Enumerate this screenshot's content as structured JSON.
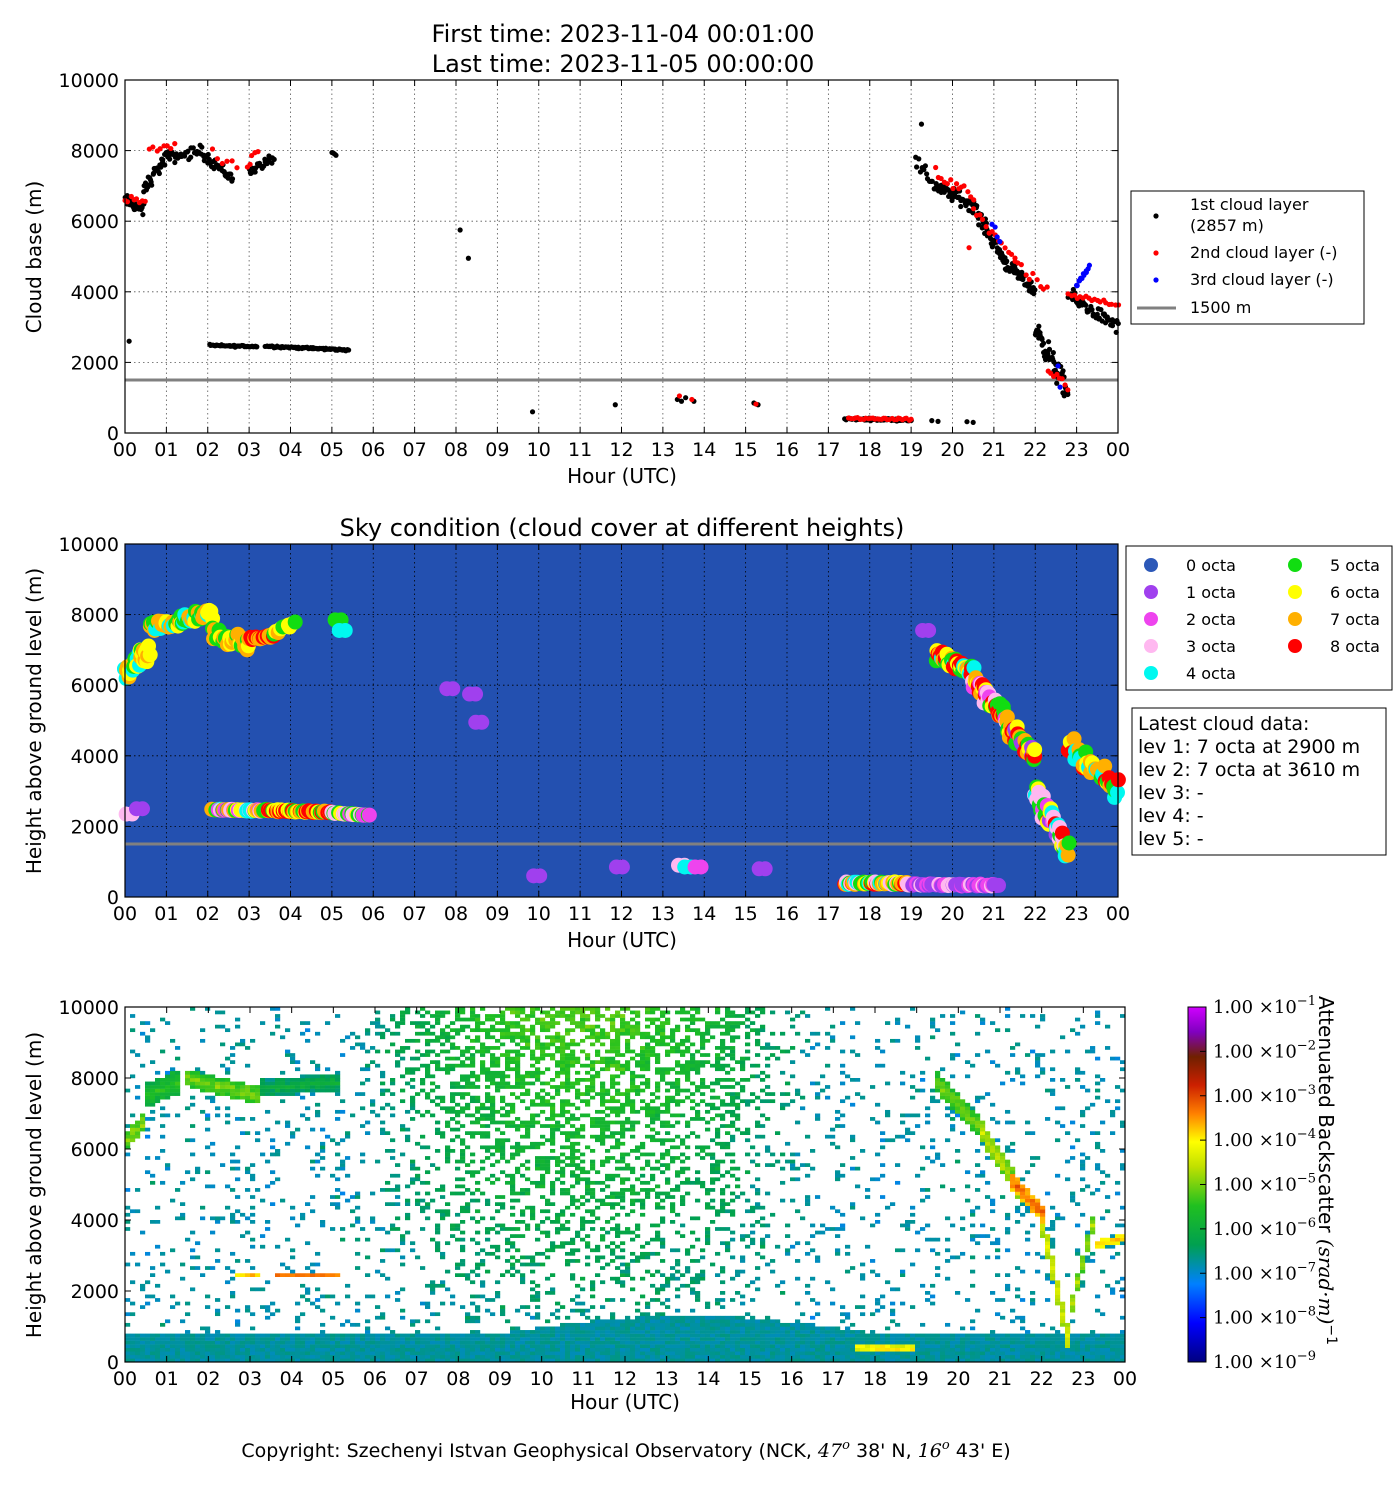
{
  "header": {
    "first_time": "First time: 2023-11-04 00:01:00",
    "last_time": "Last time: 2023-11-05 00:00:00"
  },
  "footer": {
    "copyright_prefix": "Copyright: Szechenyi Istvan Geophysical Observatory (NCK, ",
    "lat_deg": "47",
    "lat_min": " 38' N, ",
    "lon_deg": "16",
    "lon_min": " 43' E)",
    "degree_symbol": "o"
  },
  "colors": {
    "first_layer": "#000000",
    "second_layer": "#ff0000",
    "third_layer": "#0000ff",
    "reference_line": "#808080",
    "sky_background": "#2350b0"
  },
  "chart_data": [
    {
      "type": "scatter",
      "title": "",
      "xlabel": "Hour (UTC)",
      "ylabel": "Cloud base (m)",
      "xlim": [
        0,
        24
      ],
      "ylim": [
        0,
        10000
      ],
      "grid": true,
      "legend_placement": "right",
      "x_tick_labels": [
        "00",
        "01",
        "02",
        "03",
        "04",
        "05",
        "06",
        "07",
        "08",
        "09",
        "10",
        "11",
        "12",
        "13",
        "14",
        "15",
        "16",
        "17",
        "18",
        "19",
        "20",
        "21",
        "22",
        "23",
        "00"
      ],
      "y_ticks": [
        0,
        2000,
        4000,
        6000,
        8000,
        10000
      ],
      "reference_line": {
        "value": 1500,
        "label": "1500 m"
      },
      "series": [
        {
          "name": "1st cloud layer\n(2857 m)",
          "color": "#000000",
          "segments": [
            {
              "x0": 0.0,
              "x1": 0.45,
              "y0": 6600,
              "y1": 6300,
              "n": 30,
              "jitter": 250
            },
            {
              "x0": 0.45,
              "x1": 1.05,
              "y0": 6900,
              "y1": 7900,
              "n": 30,
              "jitter": 300
            },
            {
              "x0": 1.05,
              "x1": 1.9,
              "y0": 7800,
              "y1": 8000,
              "n": 30,
              "jitter": 250
            },
            {
              "x0": 1.9,
              "x1": 2.6,
              "y0": 7900,
              "y1": 7200,
              "n": 30,
              "jitter": 250
            },
            {
              "x0": 3.0,
              "x1": 3.6,
              "y0": 7400,
              "y1": 7800,
              "n": 22,
              "jitter": 200
            },
            {
              "x0": 5.0,
              "x1": 5.1,
              "y0": 7950,
              "y1": 7880,
              "n": 4,
              "jitter": 40
            },
            {
              "x0": 2.05,
              "x1": 3.2,
              "y0": 2480,
              "y1": 2450,
              "n": 40,
              "jitter": 40
            },
            {
              "x0": 3.4,
              "x1": 5.4,
              "y0": 2460,
              "y1": 2350,
              "n": 80,
              "jitter": 40
            },
            {
              "x0": 17.4,
              "x1": 19.0,
              "y0": 400,
              "y1": 370,
              "n": 55,
              "jitter": 45
            },
            {
              "x0": 19.1,
              "x1": 19.6,
              "y0": 7700,
              "y1": 7000,
              "n": 14,
              "jitter": 300
            },
            {
              "x0": 19.6,
              "x1": 20.6,
              "y0": 7000,
              "y1": 6400,
              "n": 55,
              "jitter": 300
            },
            {
              "x0": 20.6,
              "x1": 21.3,
              "y0": 6200,
              "y1": 4800,
              "n": 50,
              "jitter": 300
            },
            {
              "x0": 21.3,
              "x1": 22.0,
              "y0": 4800,
              "y1": 4000,
              "n": 45,
              "jitter": 250
            },
            {
              "x0": 22.0,
              "x1": 22.8,
              "y0": 3000,
              "y1": 1100,
              "n": 55,
              "jitter": 500
            },
            {
              "x0": 22.8,
              "x1": 24.0,
              "y0": 3900,
              "y1": 3000,
              "n": 50,
              "jitter": 300
            }
          ],
          "points": [
            {
              "x": 0.1,
              "y": 2600
            },
            {
              "x": 8.1,
              "y": 5750
            },
            {
              "x": 8.3,
              "y": 4950
            },
            {
              "x": 9.85,
              "y": 600
            },
            {
              "x": 11.85,
              "y": 800
            },
            {
              "x": 13.35,
              "y": 950
            },
            {
              "x": 13.45,
              "y": 900
            },
            {
              "x": 13.55,
              "y": 1000
            },
            {
              "x": 13.75,
              "y": 900
            },
            {
              "x": 15.2,
              "y": 850
            },
            {
              "x": 15.3,
              "y": 800
            },
            {
              "x": 19.25,
              "y": 8750
            },
            {
              "x": 19.5,
              "y": 350
            },
            {
              "x": 19.65,
              "y": 330
            },
            {
              "x": 20.35,
              "y": 320
            },
            {
              "x": 20.5,
              "y": 300
            }
          ]
        },
        {
          "name": "2nd cloud layer (-)",
          "color": "#ff0000",
          "segments": [
            {
              "x0": 0.0,
              "x1": 0.5,
              "y0": 6600,
              "y1": 6500,
              "n": 8,
              "jitter": 250
            },
            {
              "x0": 0.6,
              "x1": 1.2,
              "y0": 8000,
              "y1": 8100,
              "n": 8,
              "jitter": 200
            },
            {
              "x0": 2.1,
              "x1": 2.7,
              "y0": 8000,
              "y1": 7400,
              "n": 6,
              "jitter": 250
            },
            {
              "x0": 2.95,
              "x1": 3.2,
              "y0": 7500,
              "y1": 8000,
              "n": 5,
              "jitter": 250
            },
            {
              "x0": 17.5,
              "x1": 19.0,
              "y0": 420,
              "y1": 380,
              "n": 30,
              "jitter": 50
            },
            {
              "x0": 19.6,
              "x1": 20.5,
              "y0": 7300,
              "y1": 6700,
              "n": 14,
              "jitter": 300
            },
            {
              "x0": 20.5,
              "x1": 21.5,
              "y0": 6300,
              "y1": 5000,
              "n": 14,
              "jitter": 350
            },
            {
              "x0": 21.5,
              "x1": 22.3,
              "y0": 4800,
              "y1": 4000,
              "n": 10,
              "jitter": 250
            },
            {
              "x0": 22.3,
              "x1": 22.8,
              "y0": 1800,
              "y1": 1200,
              "n": 8,
              "jitter": 250
            },
            {
              "x0": 22.8,
              "x1": 24.0,
              "y0": 3900,
              "y1": 3650,
              "n": 18,
              "jitter": 120
            }
          ],
          "points": [
            {
              "x": 13.4,
              "y": 1050
            },
            {
              "x": 13.7,
              "y": 950
            },
            {
              "x": 15.25,
              "y": 820
            },
            {
              "x": 20.4,
              "y": 5250
            }
          ]
        },
        {
          "name": "3rd cloud layer (-)",
          "color": "#0000ff",
          "segments": [
            {
              "x0": 23.0,
              "x1": 23.3,
              "y0": 4200,
              "y1": 4700,
              "n": 12,
              "jitter": 150
            },
            {
              "x0": 20.95,
              "x1": 21.15,
              "y0": 5900,
              "y1": 5400,
              "n": 4,
              "jitter": 150
            }
          ],
          "points": [
            {
              "x": 22.55,
              "y": 1900
            },
            {
              "x": 22.6,
              "y": 1300
            }
          ]
        }
      ]
    },
    {
      "type": "scatter",
      "title": "Sky condition (cloud cover at different heights)",
      "xlabel": "Hour (UTC)",
      "ylabel": "Height above ground level (m)",
      "xlim": [
        0,
        24
      ],
      "ylim": [
        0,
        10000
      ],
      "grid": true,
      "legend_placement": "right",
      "reference_line": {
        "value": 1500
      },
      "octa_legend": [
        {
          "label": "0 octa",
          "color": "#2c58b8"
        },
        {
          "label": "1 octa",
          "color": "#a040ee"
        },
        {
          "label": "2 octa",
          "color": "#ee44ee"
        },
        {
          "label": "3 octa",
          "color": "#ffb8f0"
        },
        {
          "label": "4 octa",
          "color": "#00f8f0"
        },
        {
          "label": "5 octa",
          "color": "#11dd11"
        },
        {
          "label": "6 octa",
          "color": "#ffff00"
        },
        {
          "label": "7 octa",
          "color": "#ffb000"
        },
        {
          "label": "8 octa",
          "color": "#ff0000"
        }
      ],
      "latest": [
        "Latest cloud data:",
        "lev 1: 7 octa at 2900 m",
        "lev 2: 7 octa at 3610 m",
        "lev 3: -",
        "lev 4: -",
        "lev 5: -"
      ],
      "segments": [
        {
          "x0": 0.0,
          "x1": 0.6,
          "y0": 6300,
          "y1": 7000,
          "n": 35,
          "jitter": 350,
          "octas": [
            7,
            6,
            5,
            4,
            7,
            6
          ]
        },
        {
          "x0": 0.6,
          "x1": 1.4,
          "y0": 7700,
          "y1": 7800,
          "n": 30,
          "jitter": 250,
          "octas": [
            7,
            6,
            4,
            5,
            7
          ]
        },
        {
          "x0": 1.4,
          "x1": 2.1,
          "y0": 7800,
          "y1": 8100,
          "n": 25,
          "jitter": 250,
          "octas": [
            4,
            6,
            5,
            7
          ]
        },
        {
          "x0": 2.1,
          "x1": 3.0,
          "y0": 7500,
          "y1": 7100,
          "n": 30,
          "jitter": 300,
          "octas": [
            7,
            6,
            5,
            7
          ]
        },
        {
          "x0": 3.0,
          "x1": 3.6,
          "y0": 7300,
          "y1": 7400,
          "n": 18,
          "jitter": 100,
          "octas": [
            8,
            8,
            7
          ]
        },
        {
          "x0": 3.6,
          "x1": 4.1,
          "y0": 7400,
          "y1": 7800,
          "n": 10,
          "jitter": 150,
          "octas": [
            6,
            5,
            7
          ]
        },
        {
          "x0": 2.1,
          "x1": 3.3,
          "y0": 2480,
          "y1": 2450,
          "n": 45,
          "jitter": 40,
          "octas": [
            2,
            3,
            4,
            5,
            6,
            7
          ]
        },
        {
          "x0": 3.3,
          "x1": 5.0,
          "y0": 2460,
          "y1": 2400,
          "n": 60,
          "jitter": 40,
          "octas": [
            7,
            8,
            8,
            6,
            5
          ]
        },
        {
          "x0": 5.0,
          "x1": 5.9,
          "y0": 2380,
          "y1": 2320,
          "n": 25,
          "jitter": 30,
          "octas": [
            5,
            6,
            2,
            3
          ]
        },
        {
          "x0": 17.4,
          "x1": 18.9,
          "y0": 400,
          "y1": 380,
          "n": 55,
          "jitter": 60,
          "octas": [
            5,
            6,
            7,
            8,
            4,
            3
          ]
        },
        {
          "x0": 18.9,
          "x1": 21.1,
          "y0": 350,
          "y1": 330,
          "n": 55,
          "jitter": 40,
          "octas": [
            1,
            2,
            3,
            1
          ]
        },
        {
          "x0": 19.6,
          "x1": 20.5,
          "y0": 6800,
          "y1": 6400,
          "n": 40,
          "jitter": 300,
          "octas": [
            8,
            7,
            6,
            5,
            4
          ]
        },
        {
          "x0": 20.5,
          "x1": 21.3,
          "y0": 6200,
          "y1": 5000,
          "n": 45,
          "jitter": 350,
          "octas": [
            8,
            7,
            6,
            5,
            2,
            3
          ]
        },
        {
          "x0": 21.3,
          "x1": 22.0,
          "y0": 4900,
          "y1": 4000,
          "n": 40,
          "jitter": 350,
          "octas": [
            8,
            7,
            6,
            5,
            1
          ]
        },
        {
          "x0": 22.0,
          "x1": 22.8,
          "y0": 3000,
          "y1": 1400,
          "n": 45,
          "jitter": 600,
          "octas": [
            6,
            7,
            5,
            4,
            3,
            2,
            8,
            1
          ]
        },
        {
          "x0": 22.8,
          "x1": 24.0,
          "y0": 4200,
          "y1": 3000,
          "n": 40,
          "jitter": 500,
          "octas": [
            8,
            7,
            6,
            5,
            4
          ]
        }
      ],
      "points": [
        {
          "x": 0.1,
          "y": 2350,
          "octa": 3
        },
        {
          "x": 0.35,
          "y": 2500,
          "octa": 1
        },
        {
          "x": 5.15,
          "y": 7850,
          "octa": 5
        },
        {
          "x": 5.25,
          "y": 7550,
          "octa": 4
        },
        {
          "x": 7.85,
          "y": 5900,
          "octa": 1
        },
        {
          "x": 8.4,
          "y": 5750,
          "octa": 1
        },
        {
          "x": 8.55,
          "y": 4950,
          "octa": 1
        },
        {
          "x": 9.95,
          "y": 600,
          "octa": 1
        },
        {
          "x": 11.95,
          "y": 850,
          "octa": 1
        },
        {
          "x": 13.45,
          "y": 900,
          "octa": 3
        },
        {
          "x": 13.6,
          "y": 850,
          "octa": 4
        },
        {
          "x": 13.85,
          "y": 850,
          "octa": 2
        },
        {
          "x": 15.4,
          "y": 800,
          "octa": 1
        },
        {
          "x": 19.35,
          "y": 7550,
          "octa": 1
        }
      ]
    },
    {
      "type": "heatmap",
      "title": "",
      "xlabel": "Hour (UTC)",
      "ylabel": "Height above ground level (m)",
      "xlim": [
        0,
        24
      ],
      "ylim": [
        0,
        10000
      ],
      "colorbar_label": "Attenuated Backscatter ",
      "colorbar_unit": "(srad·m)",
      "colorbar_unit_exp": "−1",
      "colorbar_ticks": [
        {
          "mant": "1.00",
          "exp": "−1"
        },
        {
          "mant": "1.00",
          "exp": "−2"
        },
        {
          "mant": "1.00",
          "exp": "−3"
        },
        {
          "mant": "1.00",
          "exp": "−4"
        },
        {
          "mant": "1.00",
          "exp": "−5"
        },
        {
          "mant": "1.00",
          "exp": "−6"
        },
        {
          "mant": "1.00",
          "exp": "−7"
        },
        {
          "mant": "1.00",
          "exp": "−8"
        },
        {
          "mant": "1.00",
          "exp": "−9"
        }
      ],
      "clim_log10": [
        -9,
        -1
      ],
      "cloud_tracks": [
        {
          "x0": 0.0,
          "x1": 0.5,
          "y0": 6200,
          "y1": 6800,
          "log": -4.8,
          "w": 500
        },
        {
          "x0": 0.5,
          "x1": 1.3,
          "y0": 7500,
          "y1": 7900,
          "log": -5.5,
          "w": 700
        },
        {
          "x0": 1.5,
          "x1": 3.2,
          "y0": 8000,
          "y1": 7500,
          "log": -5.0,
          "w": 500
        },
        {
          "x0": 3.2,
          "x1": 5.2,
          "y0": 7700,
          "y1": 7900,
          "log": -6.0,
          "w": 500
        },
        {
          "x0": 2.6,
          "x1": 3.3,
          "y0": 2480,
          "y1": 2480,
          "log": -3.5,
          "w": 120
        },
        {
          "x0": 3.6,
          "x1": 5.2,
          "y0": 2470,
          "y1": 2420,
          "log": -3.3,
          "w": 140
        },
        {
          "x0": 17.5,
          "x1": 19.0,
          "y0": 400,
          "y1": 380,
          "log": -3.7,
          "w": 150
        },
        {
          "x0": 19.4,
          "x1": 20.5,
          "y0": 8000,
          "y1": 6600,
          "log": -5.0,
          "w": 600
        },
        {
          "x0": 20.5,
          "x1": 21.5,
          "y0": 6600,
          "y1": 4800,
          "log": -4.6,
          "w": 600
        },
        {
          "x0": 21.2,
          "x1": 22.1,
          "y0": 5200,
          "y1": 4100,
          "log": -3.2,
          "w": 500
        },
        {
          "x0": 22.0,
          "x1": 22.7,
          "y0": 4000,
          "y1": 300,
          "log": -4.3,
          "w": 700
        },
        {
          "x0": 22.7,
          "x1": 23.3,
          "y0": 1500,
          "y1": 4200,
          "log": -4.7,
          "w": 500
        },
        {
          "x0": 23.3,
          "x1": 24.0,
          "y0": 3300,
          "y1": 3500,
          "log": -3.7,
          "w": 250
        }
      ]
    }
  ]
}
